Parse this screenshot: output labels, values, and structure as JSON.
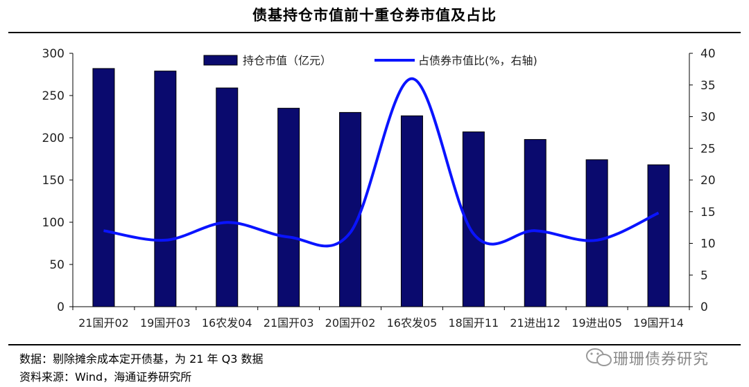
{
  "header": {
    "title": "债基持仓市值前十重仓券市值及占比"
  },
  "chart_data": {
    "type": "bar",
    "categories": [
      "21国开02",
      "19国开03",
      "16农发04",
      "21国开03",
      "20国开02",
      "16农发05",
      "18国开11",
      "21进出12",
      "19进出05",
      "19国开14"
    ],
    "series": [
      {
        "name": "持仓市值（亿元）",
        "type": "bar",
        "axis": "left",
        "color": "#0a0a6e",
        "values": [
          282,
          279,
          259,
          235,
          230,
          226,
          207,
          198,
          174,
          168
        ]
      },
      {
        "name": "占债券市值比(%，右轴)",
        "type": "line",
        "axis": "right",
        "color": "#0a14ff",
        "values": [
          12.0,
          10.5,
          13.3,
          11.0,
          11.7,
          36.0,
          11.5,
          12.0,
          10.5,
          14.8
        ]
      }
    ],
    "y_left": {
      "range": [
        0,
        300
      ],
      "ticks": [
        0,
        50,
        100,
        150,
        200,
        250,
        300
      ]
    },
    "y_right": {
      "range": [
        0,
        40
      ],
      "ticks": [
        0,
        5,
        10,
        15,
        20,
        25,
        30,
        35,
        40
      ]
    },
    "legend_position": "top",
    "grid": false
  },
  "footer": {
    "note": "数据：剔除摊余成本定开债基，为 21 年 Q3 数据",
    "source": "资料来源：Wind，海通证券研究所",
    "watermark": "珊珊债券研究"
  }
}
